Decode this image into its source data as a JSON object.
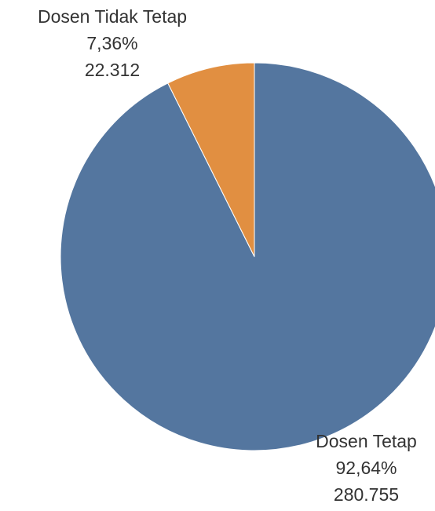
{
  "chart_data": {
    "type": "pie",
    "title": "",
    "start_angle_deg": 0,
    "direction": "clockwise",
    "slices": [
      {
        "name": "Dosen Tetap",
        "percent_label": "92,64%",
        "value_label": "280.755",
        "value": 280755,
        "percent": 92.64,
        "color": "#54769f"
      },
      {
        "name": "Dosen Tidak Tetap",
        "percent_label": "7,36%",
        "value_label": "22.312",
        "value": 22312,
        "percent": 7.36,
        "color": "#e18f41"
      }
    ]
  }
}
